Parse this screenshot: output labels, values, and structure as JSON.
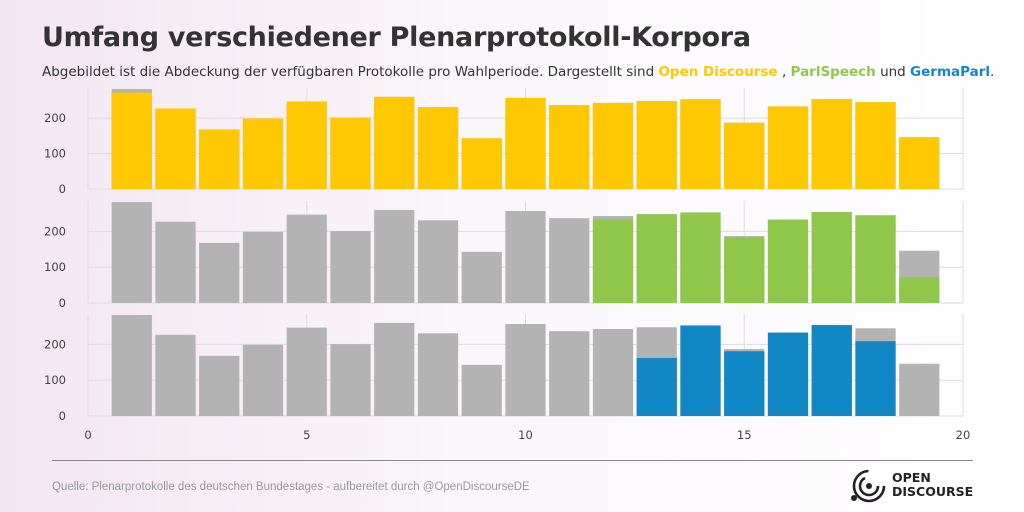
{
  "header": {
    "title": "Umfang verschiedener Plenarprotokoll-Korpora",
    "subtitle_prefix": "Abgebildet ist die Abdeckung der verfügbaren Protokolle pro Wahlperiode. Dargestellt sind ",
    "corpus_1": "Open Discourse",
    "sep_1": " , ",
    "corpus_2": "ParlSpeech",
    "sep_2": " und ",
    "corpus_3": "GermaParl",
    "subtitle_suffix": "."
  },
  "footer": {
    "source": "Quelle: Plenarprotokolle des deutschen Bundestages - aufbereitet durch @OpenDiscourseDE",
    "logo_line_1": "OPEN",
    "logo_line_2": "DISCOURSE"
  },
  "colors": {
    "total": "#b3b3b3",
    "open_discourse": "#ffc800",
    "parlspeech": "#8fc74a",
    "germaparl": "#1287c6",
    "grid": "#e2d8e0"
  },
  "chart_data": {
    "type": "bar",
    "subtype": "faceted overlay bars",
    "x": [
      1,
      2,
      3,
      4,
      5,
      6,
      7,
      8,
      9,
      10,
      11,
      12,
      13,
      14,
      15,
      16,
      17,
      18,
      19
    ],
    "xlim": [
      0,
      20
    ],
    "xticks": [
      0,
      5,
      10,
      15,
      20
    ],
    "ylim": [
      0,
      285
    ],
    "yticks": [
      0,
      100,
      200
    ],
    "total_protocols": [
      282,
      227,
      168,
      199,
      247,
      201,
      260,
      231,
      143,
      257,
      237,
      243,
      248,
      253,
      187,
      233,
      254,
      245,
      146
    ],
    "panels": [
      {
        "corpus": "Open Discourse",
        "values": [
          272,
          227,
          168,
          199,
          247,
          201,
          260,
          231,
          143,
          257,
          237,
          243,
          248,
          251,
          187,
          233,
          254,
          245,
          146
        ]
      },
      {
        "corpus": "ParlSpeech",
        "values": [
          0,
          0,
          0,
          0,
          0,
          0,
          0,
          0,
          0,
          0,
          0,
          233,
          248,
          253,
          184,
          233,
          254,
          245,
          72
        ]
      },
      {
        "corpus": "GermaParl",
        "values": [
          0,
          0,
          0,
          0,
          0,
          0,
          0,
          0,
          0,
          0,
          0,
          0,
          162,
          253,
          181,
          233,
          254,
          209,
          0
        ]
      }
    ]
  }
}
